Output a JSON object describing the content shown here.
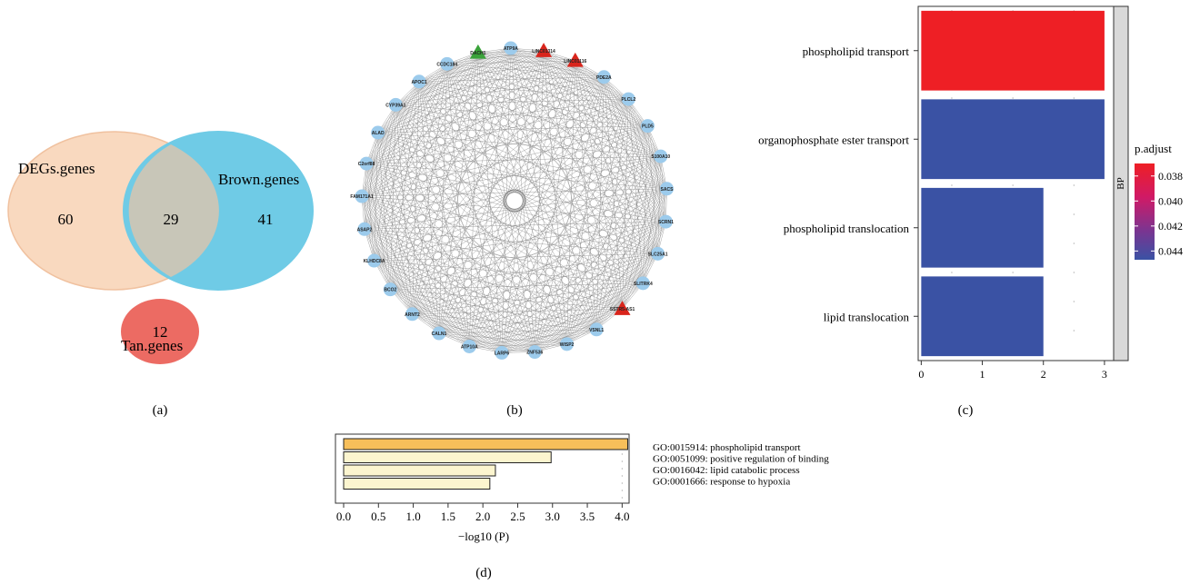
{
  "panel_labels": [
    "(a)",
    "(b)",
    "(c)",
    "(d)"
  ],
  "colors": {
    "venn_degs": "#f9d9bf",
    "venn_brown": "#6fcbe6",
    "venn_overlap": "#c8c6b8",
    "venn_tan": "#ec6b63",
    "node_blue": "#9ccbec",
    "node_red": "#d9251c",
    "node_green": "#3aa33a",
    "edge": "#7a7a7a",
    "bar_top": "#ee1f25",
    "bar_other": "#3a52a4",
    "d_bar_top": "#f7bf5a",
    "d_bar_other": "#fcf5cf"
  },
  "chart_data": [
    {
      "type": "venn",
      "sets": [
        {
          "name": "DEGs.genes",
          "only": 60
        },
        {
          "name": "Brown.genes",
          "only": 41
        },
        {
          "name": "Tan.genes",
          "only": 12
        }
      ],
      "intersections": [
        {
          "sets": [
            "DEGs.genes",
            "Brown.genes"
          ],
          "value": 29
        }
      ]
    },
    {
      "type": "network",
      "layout": "circle",
      "nodes": [
        {
          "label": "LINC01314",
          "shape": "triangle",
          "color": "red"
        },
        {
          "label": "LINC01116",
          "shape": "triangle",
          "color": "red"
        },
        {
          "label": "PDE2A",
          "shape": "circle",
          "color": "blue"
        },
        {
          "label": "PLCL2",
          "shape": "circle",
          "color": "blue"
        },
        {
          "label": "PLD5",
          "shape": "circle",
          "color": "blue"
        },
        {
          "label": "S100A10",
          "shape": "circle",
          "color": "blue"
        },
        {
          "label": "SACS",
          "shape": "circle",
          "color": "blue"
        },
        {
          "label": "SCRN1",
          "shape": "circle",
          "color": "blue"
        },
        {
          "label": "SLC25A1",
          "shape": "circle",
          "color": "blue"
        },
        {
          "label": "SLITRK4",
          "shape": "circle",
          "color": "blue"
        },
        {
          "label": "SSTR5-AS1",
          "shape": "triangle",
          "color": "red"
        },
        {
          "label": "VSNL1",
          "shape": "circle",
          "color": "blue"
        },
        {
          "label": "WISP2",
          "shape": "circle",
          "color": "blue"
        },
        {
          "label": "ZNF536",
          "shape": "circle",
          "color": "blue"
        },
        {
          "label": "LARP6",
          "shape": "circle",
          "color": "blue"
        },
        {
          "label": "ATP10A",
          "shape": "circle",
          "color": "blue"
        },
        {
          "label": "CALN1",
          "shape": "circle",
          "color": "blue"
        },
        {
          "label": "ARNT2",
          "shape": "circle",
          "color": "blue"
        },
        {
          "label": "BCO2",
          "shape": "circle",
          "color": "blue"
        },
        {
          "label": "KLHDC8A",
          "shape": "circle",
          "color": "blue"
        },
        {
          "label": "ASAP2",
          "shape": "circle",
          "color": "blue"
        },
        {
          "label": "FAM171A1",
          "shape": "circle",
          "color": "blue"
        },
        {
          "label": "C2orf88",
          "shape": "circle",
          "color": "blue"
        },
        {
          "label": "ALAD",
          "shape": "circle",
          "color": "blue"
        },
        {
          "label": "CYP39A1",
          "shape": "circle",
          "color": "blue"
        },
        {
          "label": "APOC1",
          "shape": "circle",
          "color": "blue"
        },
        {
          "label": "CCDC184",
          "shape": "circle",
          "color": "blue"
        },
        {
          "label": "DACH1",
          "shape": "triangle",
          "color": "green"
        },
        {
          "label": "ATP9A",
          "shape": "circle",
          "color": "blue"
        }
      ]
    },
    {
      "type": "bar",
      "orientation": "horizontal",
      "categories": [
        "phospholipid transport",
        "organophosphate ester transport",
        "phospholipid translocation",
        "lipid translocation"
      ],
      "values": [
        3,
        3,
        2,
        2
      ],
      "p_adjust": [
        0.0375,
        0.0445,
        0.0445,
        0.0445
      ],
      "xticks": [
        0,
        1,
        2,
        3
      ],
      "xlim": [
        -0.05,
        3.15
      ],
      "facet": "BP",
      "legend": {
        "title": "p.adjust",
        "ticks": [
          "0.038",
          "0.040",
          "0.042",
          "0.044"
        ],
        "range": [
          0.037,
          0.0447
        ],
        "position": "right"
      }
    },
    {
      "type": "bar",
      "orientation": "horizontal",
      "categories": [
        "GO:0015914: phospholipid transport",
        "GO:0051099: positive regulation of binding",
        "GO:0016042: lipid catabolic process",
        "GO:0001666: response to hypoxia"
      ],
      "values": [
        4.08,
        2.98,
        2.18,
        2.1
      ],
      "xlabel": "−log10 (P)",
      "xticks": [
        "0.0",
        "0.5",
        "1.0",
        "1.5",
        "2.0",
        "2.5",
        "3.0",
        "3.5",
        "4.0"
      ],
      "xlim": [
        0,
        4.1
      ]
    }
  ]
}
